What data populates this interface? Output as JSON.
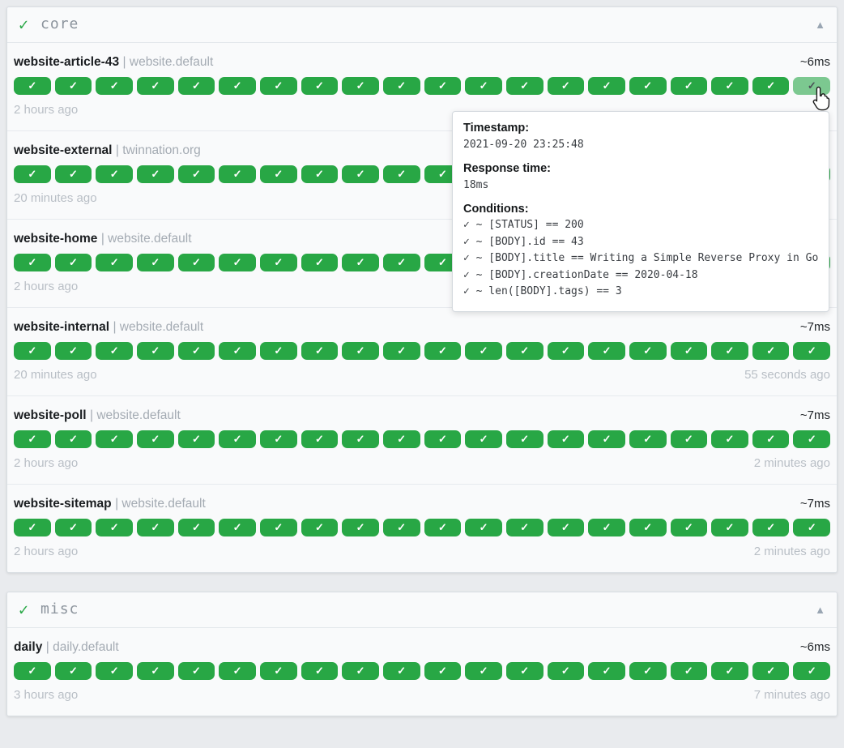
{
  "icons": {
    "group_check": "✓",
    "collapse_arrow": "▲",
    "badge_check": "✓",
    "cursor": "hand-pointer"
  },
  "colors": {
    "badge_green": "#28a745",
    "badge_green_hover": "#7cc890",
    "group_title_gray": "#8b939c",
    "page_background": "#e9ebee",
    "card_background": "#f9fafb",
    "muted_timestamp": "#b9bfc6"
  },
  "name_separator": "|",
  "groups": [
    {
      "title": "core",
      "services": [
        {
          "name": "website-article-43",
          "group": "website.default",
          "response_time": "~6ms",
          "oldest": "2 hours ago",
          "newest": "",
          "badges": 20,
          "hovered_last": true
        },
        {
          "name": "website-external",
          "group": "twinnation.org",
          "response_time": "",
          "oldest": "20 minutes ago",
          "newest": "",
          "badges": 20
        },
        {
          "name": "website-home",
          "group": "website.default",
          "response_time": "",
          "oldest": "2 hours ago",
          "newest": "",
          "badges": 20
        },
        {
          "name": "website-internal",
          "group": "website.default",
          "response_time": "~7ms",
          "oldest": "20 minutes ago",
          "newest": "55 seconds ago",
          "badges": 20
        },
        {
          "name": "website-poll",
          "group": "website.default",
          "response_time": "~7ms",
          "oldest": "2 hours ago",
          "newest": "2 minutes ago",
          "badges": 20
        },
        {
          "name": "website-sitemap",
          "group": "website.default",
          "response_time": "~7ms",
          "oldest": "2 hours ago",
          "newest": "2 minutes ago",
          "badges": 20
        }
      ]
    },
    {
      "title": "misc",
      "services": [
        {
          "name": "daily",
          "group": "daily.default",
          "response_time": "~6ms",
          "oldest": "3 hours ago",
          "newest": "7 minutes ago",
          "badges": 20
        }
      ]
    }
  ],
  "tooltip": {
    "timestamp_label": "Timestamp:",
    "timestamp": "2021-09-20 23:25:48",
    "response_time_label": "Response time:",
    "response_time": "18ms",
    "conditions_label": "Conditions:",
    "conditions": [
      "✓ ~ [STATUS] == 200",
      "✓ ~ [BODY].id == 43",
      "✓ ~ [BODY].title == Writing a Simple Reverse Proxy in Go",
      "✓ ~ [BODY].creationDate == 2020-04-18",
      "✓ ~ len([BODY].tags) == 3"
    ]
  }
}
